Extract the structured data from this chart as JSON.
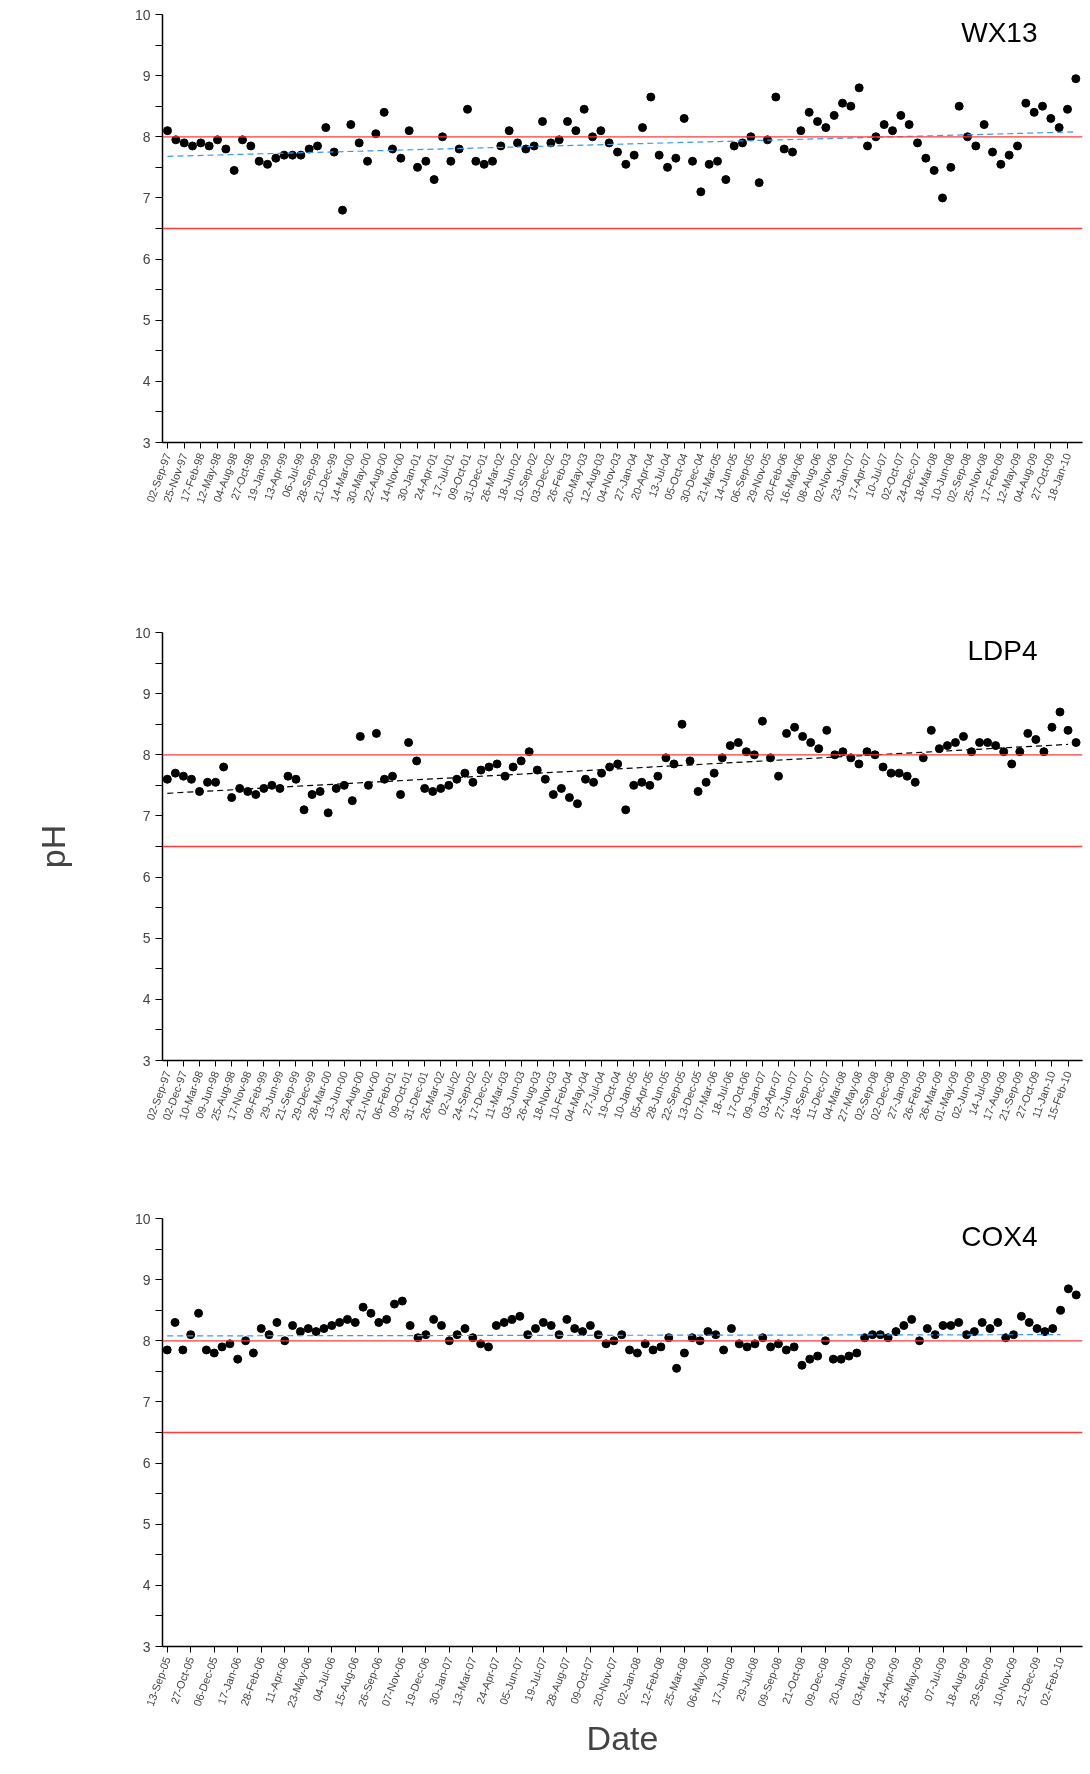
{
  "chart_data": [
    {
      "type": "scatter",
      "title": "WX13",
      "grid": false,
      "categories": [
        "02-Sep-97",
        null,
        "25-Nov-97",
        null,
        "17-Feb-98",
        null,
        "12-May-98",
        null,
        "04-Aug-98",
        null,
        "27-Oct-98",
        null,
        "19-Jan-99",
        null,
        "13-Apr-99",
        null,
        "06-Jul-99",
        null,
        "28-Sep-99",
        null,
        "21-Dec-99",
        null,
        "14-Mar-00",
        null,
        "30-May-00",
        null,
        "22-Aug-00",
        null,
        "14-Nov-00",
        null,
        "30-Jan-01",
        null,
        "24-Apr-01",
        null,
        "17-Jul-01",
        null,
        "09-Oct-01",
        null,
        "31-Dec-01",
        null,
        "26-Mar-02",
        null,
        "18-Jun-02",
        null,
        "10-Sep-02",
        null,
        "03-Dec-02",
        null,
        "26-Feb-03",
        null,
        "20-May-03",
        null,
        "12-Aug-03",
        null,
        "04-Nov-03",
        null,
        "27-Jan-04",
        null,
        "20-Apr-04",
        null,
        "13-Jul-04",
        null,
        "05-Oct-04",
        null,
        "30-Dec-04",
        null,
        "21-Mar-05",
        null,
        "14-Jun-05",
        null,
        "06-Sep-05",
        null,
        "29-Nov-05",
        null,
        "20-Feb-06",
        null,
        "16-May-06",
        null,
        "08-Aug-06",
        null,
        "02-Nov-06",
        null,
        "23-Jan-07",
        null,
        "17-Apr-07",
        null,
        "10-Jul-07",
        null,
        "02-Oct-07",
        null,
        "24-Dec-07",
        null,
        "18-Mar-08",
        null,
        "10-Jun-08",
        null,
        "02-Sep-08",
        null,
        "25-Nov-08",
        null,
        "17-Feb-09",
        null,
        "12-May-09",
        null,
        "04-Aug-09",
        null,
        "27-Oct-09",
        null,
        "18-Jan-10",
        null
      ],
      "series": [
        {
          "marker": "circle",
          "color": "#000000",
          "values": [
            8.1,
            7.95,
            7.9,
            7.85,
            7.9,
            7.85,
            7.95,
            7.8,
            7.45,
            7.95,
            7.85,
            7.6,
            7.55,
            7.65,
            7.7,
            7.7,
            7.7,
            7.8,
            7.85,
            8.15,
            7.75,
            6.8,
            8.2,
            7.9,
            7.6,
            8.05,
            8.4,
            7.8,
            7.65,
            8.1,
            7.5,
            7.6,
            7.3,
            8.0,
            7.6,
            7.8,
            8.45,
            7.6,
            7.55,
            7.6,
            7.85,
            8.1,
            7.9,
            7.8,
            7.85,
            8.25,
            7.9,
            7.95,
            8.25,
            8.1,
            8.45,
            8.0,
            8.1,
            7.9,
            7.75,
            7.55,
            7.7,
            8.15,
            8.65,
            7.7,
            7.5,
            7.65,
            8.3,
            7.6,
            7.1,
            7.55,
            7.6,
            7.3,
            7.85,
            7.9,
            8.0,
            7.25,
            7.95,
            8.65,
            7.8,
            7.75,
            8.1,
            8.4,
            8.25,
            8.15,
            8.35,
            8.55,
            8.5,
            8.8,
            7.85,
            8.0,
            8.2,
            8.1,
            8.35,
            8.2,
            7.9,
            7.65,
            7.45,
            7.0,
            7.5,
            8.5,
            8.0,
            7.85,
            8.2,
            7.75,
            7.55,
            7.7,
            7.85,
            8.55,
            8.4,
            8.5,
            8.3,
            8.15,
            8.45,
            8.95
          ]
        },
        {
          "type": "line",
          "marker": "none",
          "color": "#3399ff",
          "line_style": "dashed",
          "values": [
            7.68,
            null,
            null,
            null,
            null,
            null,
            null,
            null,
            null,
            null,
            null,
            null,
            null,
            null,
            null,
            null,
            null,
            null,
            null,
            null,
            null,
            null,
            null,
            null,
            null,
            null,
            null,
            null,
            null,
            null,
            null,
            null,
            null,
            null,
            null,
            null,
            null,
            null,
            null,
            null,
            null,
            null,
            null,
            null,
            null,
            null,
            null,
            null,
            null,
            null,
            null,
            null,
            null,
            null,
            null,
            null,
            null,
            null,
            null,
            null,
            null,
            null,
            null,
            null,
            null,
            null,
            null,
            null,
            null,
            null,
            null,
            null,
            null,
            null,
            null,
            null,
            null,
            null,
            null,
            null,
            null,
            null,
            null,
            null,
            null,
            null,
            null,
            null,
            null,
            null,
            null,
            null,
            null,
            null,
            null,
            null,
            null,
            null,
            null,
            null,
            null,
            null,
            null,
            null,
            null,
            null,
            null,
            null,
            null,
            8.08
          ]
        }
      ],
      "ylim": [
        3,
        10
      ],
      "yticks": [
        3,
        {
          "value": 3.5,
          "label": null
        },
        4,
        {
          "value": 4.5,
          "label": null
        },
        5,
        {
          "value": 5.5,
          "label": null
        },
        6,
        {
          "value": 6.5,
          "label": null
        },
        7,
        {
          "value": 7.5,
          "label": null
        },
        8,
        {
          "value": 8.5,
          "label": null
        },
        9,
        {
          "value": 9.5,
          "label": null
        },
        10
      ],
      "ref_lines": [
        {
          "axis": "y",
          "value": 8,
          "color": "#ff3b3b"
        },
        {
          "axis": "y",
          "value": 6.5,
          "color": "#ff3b3b"
        }
      ]
    },
    {
      "type": "scatter",
      "title": "LDP4",
      "ylabel": "pH",
      "grid": false,
      "categories": [
        "02-Sep-97",
        null,
        "02-Dec-97",
        null,
        "10-Mar-98",
        null,
        "09-Jun-98",
        null,
        "25-Aug-98",
        null,
        "17-Nov-98",
        null,
        "09-Feb-99",
        null,
        "29-Jun-99",
        null,
        "21-Sep-99",
        null,
        "29-Dec-99",
        null,
        "28-Mar-00",
        null,
        "13-Jun-00",
        null,
        "29-Aug-00",
        null,
        "21-Nov-00",
        null,
        "06-Feb-01",
        null,
        "09-Oct-01",
        null,
        "31-Dec-01",
        null,
        "26-Mar-02",
        null,
        "02-Jul-02",
        null,
        "24-Sep-02",
        null,
        "17-Dec-02",
        null,
        "11-Mar-03",
        null,
        "03-Jun-03",
        null,
        "26-Aug-03",
        null,
        "18-Nov-03",
        null,
        "10-Feb-04",
        null,
        "04-May-04",
        null,
        "27-Jul-04",
        null,
        "19-Oct-04",
        null,
        "10-Jan-05",
        null,
        "05-Apr-05",
        null,
        "28-Jun-05",
        null,
        "22-Sep-05",
        null,
        "13-Dec-05",
        null,
        "07-Mar-06",
        null,
        "18-Jul-06",
        null,
        "17-Oct-06",
        null,
        "09-Jan-07",
        null,
        "03-Apr-07",
        null,
        "27-Jun-07",
        null,
        "18-Sep-07",
        null,
        "11-Dec-07",
        null,
        "04-Mar-08",
        null,
        "27-May-08",
        null,
        "02-Sep-08",
        null,
        "02-Dec-08",
        null,
        "27-Jan-09",
        null,
        "26-Feb-09",
        null,
        "26-Mar-09",
        null,
        "01-May-09",
        null,
        "02-Jun-09",
        null,
        "14-Jul-09",
        null,
        "17-Aug-09",
        null,
        "21-Sep-09",
        null,
        "27-Oct-09",
        null,
        "11-Jan-10",
        null,
        "15-Feb-10",
        null
      ],
      "series": [
        {
          "marker": "circle",
          "color": "#000000",
          "values": [
            7.6,
            7.7,
            7.65,
            7.6,
            7.4,
            7.55,
            7.55,
            7.8,
            7.3,
            7.45,
            7.4,
            7.35,
            7.45,
            7.5,
            7.45,
            7.65,
            7.6,
            7.1,
            7.35,
            7.4,
            7.05,
            7.45,
            7.5,
            7.25,
            8.3,
            7.5,
            8.35,
            7.6,
            7.65,
            7.35,
            8.2,
            7.9,
            7.45,
            7.4,
            7.45,
            7.5,
            7.6,
            7.7,
            7.55,
            7.75,
            7.8,
            7.85,
            7.65,
            7.8,
            7.9,
            8.05,
            7.75,
            7.6,
            7.35,
            7.45,
            7.3,
            7.2,
            7.6,
            7.55,
            7.7,
            7.8,
            7.85,
            7.1,
            7.5,
            7.55,
            7.5,
            7.65,
            7.95,
            7.85,
            8.5,
            7.9,
            7.4,
            7.55,
            7.7,
            7.95,
            8.15,
            8.2,
            8.05,
            8.0,
            8.55,
            7.95,
            7.65,
            8.35,
            8.45,
            8.3,
            8.2,
            8.1,
            8.4,
            8.0,
            8.05,
            7.95,
            7.85,
            8.05,
            8.0,
            7.8,
            7.7,
            7.7,
            7.65,
            7.55,
            7.95,
            8.4,
            8.1,
            8.15,
            8.2,
            8.3,
            8.05,
            8.2,
            8.2,
            8.15,
            8.05,
            7.85,
            8.05,
            8.35,
            8.25,
            8.05,
            8.45,
            8.7,
            8.4,
            8.2
          ]
        },
        {
          "type": "line",
          "marker": "none",
          "color": "#000000",
          "line_style": "dashed",
          "x": [
            "02-Sep-97",
            "15-Feb-10"
          ],
          "values": [
            7.37,
            8.17
          ]
        }
      ],
      "ylim": [
        3,
        10
      ],
      "yticks": [
        3,
        {
          "value": 3.5,
          "label": null
        },
        4,
        {
          "value": 4.5,
          "label": null
        },
        5,
        {
          "value": 5.5,
          "label": null
        },
        6,
        {
          "value": 6.5,
          "label": null
        },
        7,
        {
          "value": 7.5,
          "label": null
        },
        8,
        {
          "value": 8.5,
          "label": null
        },
        9,
        {
          "value": 9.5,
          "label": null
        },
        10
      ],
      "ref_lines": [
        {
          "axis": "y",
          "value": 8,
          "color": "#ff3b3b"
        },
        {
          "axis": "y",
          "value": 6.5,
          "color": "#ff3b3b"
        }
      ]
    },
    {
      "type": "scatter",
      "title": "COX4",
      "xlabel": "Date",
      "grid": false,
      "categories": [
        "13-Sep-05",
        null,
        null,
        "27-Oct-05",
        null,
        null,
        "06-Dec-05",
        null,
        null,
        "17-Jan-06",
        null,
        null,
        "28-Feb-06",
        null,
        null,
        "11-Apr-06",
        null,
        null,
        "23-May-06",
        null,
        null,
        "04-Jul-06",
        null,
        null,
        "15-Aug-06",
        null,
        null,
        "26-Sep-06",
        null,
        null,
        "07-Nov-06",
        null,
        null,
        "19-Dec-06",
        null,
        null,
        "30-Jan-07",
        null,
        null,
        "13-Mar-07",
        null,
        null,
        "24-Apr-07",
        null,
        null,
        "05-Jun-07",
        null,
        null,
        "19-Jul-07",
        null,
        null,
        "28-Aug-07",
        null,
        null,
        "09-Oct-07",
        null,
        null,
        "20-Nov-07",
        null,
        null,
        "02-Jan-08",
        null,
        null,
        "12-Feb-08",
        null,
        null,
        "25-Mar-08",
        null,
        null,
        "06-May-08",
        null,
        null,
        "17-Jun-08",
        null,
        null,
        "29-Jul-08",
        null,
        null,
        "09-Sep-08",
        null,
        null,
        "21-Oct-08",
        null,
        null,
        "09-Dec-08",
        null,
        null,
        "20-Jan-09",
        null,
        null,
        "03-Mar-09",
        null,
        null,
        "14-Apr-09",
        null,
        null,
        "26-May-09",
        null,
        null,
        "07-Jul-09",
        null,
        null,
        "18-Aug-09",
        null,
        null,
        "29-Sep-09",
        null,
        null,
        "10-Nov-09",
        null,
        null,
        "21-Dec-09",
        null,
        null,
        "02-Feb-10",
        null,
        null
      ],
      "series": [
        {
          "marker": "circle",
          "color": "#000000",
          "values": [
            7.85,
            8.3,
            7.85,
            8.1,
            8.45,
            7.85,
            7.8,
            7.9,
            7.95,
            7.7,
            8.0,
            7.8,
            8.2,
            8.1,
            8.3,
            8.0,
            8.25,
            8.15,
            8.2,
            8.15,
            8.2,
            8.25,
            8.3,
            8.35,
            8.3,
            8.55,
            8.45,
            8.3,
            8.35,
            8.6,
            8.65,
            8.25,
            8.05,
            8.1,
            8.35,
            8.25,
            8.0,
            8.1,
            8.2,
            8.05,
            7.95,
            7.9,
            8.25,
            8.3,
            8.35,
            8.4,
            8.1,
            8.2,
            8.3,
            8.25,
            8.1,
            8.35,
            8.2,
            8.15,
            8.25,
            8.1,
            7.95,
            8.0,
            8.1,
            7.85,
            7.8,
            7.95,
            7.85,
            7.9,
            8.05,
            7.55,
            7.8,
            8.05,
            8.0,
            8.15,
            8.1,
            7.85,
            8.2,
            7.95,
            7.9,
            7.95,
            8.05,
            7.9,
            7.95,
            7.85,
            7.9,
            7.6,
            7.7,
            7.75,
            8.0,
            7.7,
            7.7,
            7.75,
            7.8,
            8.05,
            8.1,
            8.1,
            8.05,
            8.15,
            8.25,
            8.35,
            8.0,
            8.2,
            8.1,
            8.25,
            8.25,
            8.3,
            8.1,
            8.15,
            8.3,
            8.2,
            8.3,
            8.05,
            8.1,
            8.4,
            8.3,
            8.2,
            8.15,
            8.2,
            8.5,
            8.85,
            8.75
          ]
        },
        {
          "type": "line",
          "marker": "none",
          "color": "#3399ff",
          "line_style": "dashed",
          "x": [
            "13-Sep-05",
            "02-Feb-10"
          ],
          "values": [
            8.08,
            8.1
          ]
        }
      ],
      "ylim": [
        3,
        10
      ],
      "yticks": [
        3,
        {
          "value": 3.5,
          "label": null
        },
        4,
        {
          "value": 4.5,
          "label": null
        },
        5,
        {
          "value": 5.5,
          "label": null
        },
        6,
        {
          "value": 6.5,
          "label": null
        },
        7,
        {
          "value": 7.5,
          "label": null
        },
        8,
        {
          "value": 8.5,
          "label": null
        },
        9,
        {
          "value": 9.5,
          "label": null
        },
        10
      ],
      "ref_lines": [
        {
          "axis": "y",
          "value": 8,
          "color": "#ff3b3b"
        },
        {
          "axis": "y",
          "value": 6.5,
          "color": "#ff3b3b"
        }
      ]
    }
  ]
}
